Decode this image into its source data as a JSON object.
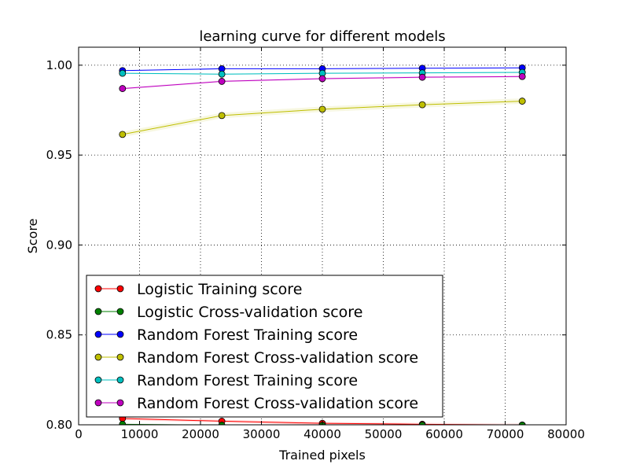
{
  "chart_data": {
    "type": "line",
    "title": "learning curve for different models",
    "xlabel": "Trained pixels",
    "ylabel": "Score",
    "xlim": [
      0,
      80000
    ],
    "ylim": [
      0.8,
      1.01
    ],
    "grid": true,
    "legend_position": "lower-left",
    "x_ticks": [
      0,
      10000,
      20000,
      30000,
      40000,
      50000,
      60000,
      70000,
      80000
    ],
    "x_tick_labels": [
      "0",
      "10000",
      "20000",
      "30000",
      "40000",
      "50000",
      "60000",
      "70000",
      "80000"
    ],
    "y_ticks": [
      0.8,
      0.85,
      0.9,
      0.95,
      1.0
    ],
    "y_tick_labels": [
      "0.80",
      "0.85",
      "0.90",
      "0.95",
      "1.00"
    ],
    "x": [
      7200,
      23500,
      40000,
      56400,
      72800
    ],
    "series": [
      {
        "name": "Logistic Training score",
        "color": "#ff0000",
        "values": [
          0.8035,
          0.802,
          0.8008,
          0.8003,
          0.7999
        ]
      },
      {
        "name": "Logistic Cross-validation score",
        "color": "#008000",
        "values": [
          0.8003,
          0.7998,
          0.7997,
          0.7998,
          0.7998
        ]
      },
      {
        "name": "Random Forest Training score",
        "color": "#0000ff",
        "values": [
          0.997,
          0.998,
          0.998,
          0.9983,
          0.9985
        ]
      },
      {
        "name": "Random Forest Cross-validation score",
        "color": "#bfbf00",
        "values": [
          0.9615,
          0.972,
          0.9755,
          0.978,
          0.98
        ]
      },
      {
        "name": "Random Forest Training score",
        "color": "#00bfbf",
        "values": [
          0.9955,
          0.995,
          0.9955,
          0.9957,
          0.996
        ]
      },
      {
        "name": "Random Forest Cross-validation score",
        "color": "#bf00bf",
        "values": [
          0.987,
          0.991,
          0.9925,
          0.9933,
          0.9937
        ]
      }
    ]
  }
}
